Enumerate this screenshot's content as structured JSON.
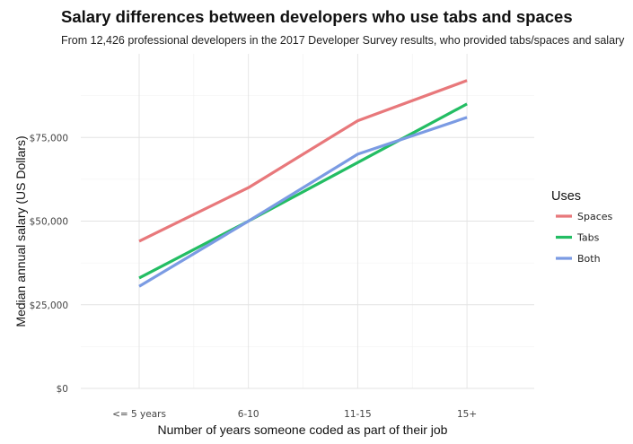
{
  "chart_data": {
    "type": "line",
    "title": "Salary differences between developers who use tabs and spaces",
    "subtitle": "From 12,426 professional developers in the 2017 Developer Survey results, who provided tabs/spaces and salary",
    "xlabel": "Number of years someone coded as part of their job",
    "ylabel": "Median annual salary (US Dollars)",
    "categories": [
      "<= 5 years",
      "6-10",
      "11-15",
      "15+"
    ],
    "ylim": [
      0,
      100000
    ],
    "y_ticks": [
      0,
      25000,
      50000,
      75000
    ],
    "y_tick_labels": [
      "$0",
      "$25,000",
      "$50,000",
      "$75,000"
    ],
    "legend_title": "Uses",
    "series": [
      {
        "name": "Spaces",
        "color": "#e8787b",
        "values": [
          44000,
          60000,
          80000,
          92000
        ]
      },
      {
        "name": "Tabs",
        "color": "#23bd63",
        "values": [
          33000,
          50000,
          67500,
          85000
        ]
      },
      {
        "name": "Both",
        "color": "#7b9be3",
        "values": [
          30500,
          50000,
          70000,
          81000
        ]
      }
    ]
  }
}
